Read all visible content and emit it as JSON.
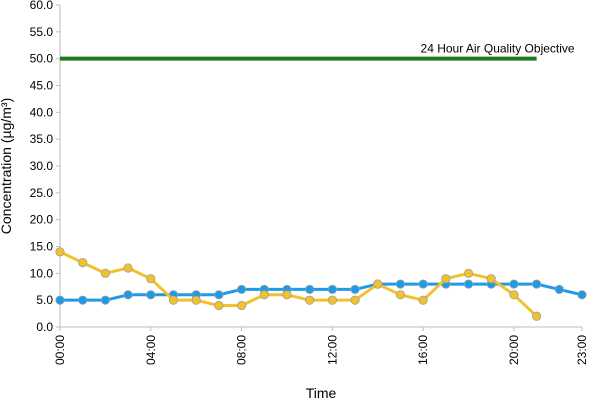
{
  "chart_data": {
    "type": "line",
    "title": "",
    "xlabel": "Time",
    "ylabel": "Concentration (µg/m³)",
    "xlim": [
      0,
      23
    ],
    "ylim": [
      0,
      60
    ],
    "grid": false,
    "x_ticks": [
      {
        "x": 0,
        "label": "00:00"
      },
      {
        "x": 4,
        "label": "04:00"
      },
      {
        "x": 8,
        "label": "08:00"
      },
      {
        "x": 12,
        "label": "12:00"
      },
      {
        "x": 16,
        "label": "16:00"
      },
      {
        "x": 20,
        "label": "20:00"
      },
      {
        "x": 23,
        "label": "23:00"
      }
    ],
    "y_ticks": [
      {
        "y": 0,
        "label": "0.0"
      },
      {
        "y": 5,
        "label": "5.0"
      },
      {
        "y": 10,
        "label": "10.0"
      },
      {
        "y": 15,
        "label": "15.0"
      },
      {
        "y": 20,
        "label": "20.0"
      },
      {
        "y": 25,
        "label": "25.0"
      },
      {
        "y": 30,
        "label": "30.0"
      },
      {
        "y": 35,
        "label": "35.0"
      },
      {
        "y": 40,
        "label": "40.0"
      },
      {
        "y": 45,
        "label": "45.0"
      },
      {
        "y": 50,
        "label": "50.0"
      },
      {
        "y": 55,
        "label": "55.0"
      },
      {
        "y": 60,
        "label": "60.0"
      }
    ],
    "reference_line": {
      "label": "24 Hour Air Quality Objective",
      "y": 50,
      "x_start": 0,
      "x_end": 21,
      "color": "#1f7a1f"
    },
    "series": [
      {
        "color": "#1e9be8",
        "x": [
          0,
          1,
          2,
          3,
          4,
          5,
          6,
          7,
          8,
          9,
          10,
          11,
          12,
          13,
          14,
          15,
          16,
          17,
          18,
          19,
          20,
          21,
          22,
          23
        ],
        "values": [
          5,
          5,
          5,
          6,
          6,
          6,
          6,
          6,
          7,
          7,
          7,
          7,
          7,
          7,
          8,
          8,
          8,
          8,
          8,
          8,
          8,
          8,
          7,
          6
        ]
      },
      {
        "color": "#f2c12e",
        "x": [
          0,
          1,
          2,
          3,
          4,
          5,
          6,
          7,
          8,
          9,
          10,
          11,
          12,
          13,
          14,
          15,
          16,
          17,
          18,
          19,
          20,
          21
        ],
        "values": [
          14,
          12,
          10,
          11,
          9,
          5,
          5,
          4,
          4,
          6,
          6,
          5,
          5,
          5,
          8,
          6,
          5,
          9,
          10,
          9,
          6,
          2
        ]
      }
    ]
  }
}
